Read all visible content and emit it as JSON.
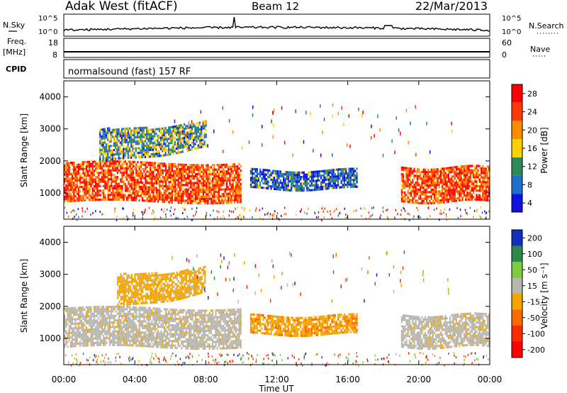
{
  "header": {
    "station": "Adak West (fitACF)",
    "beam": "Beam 12",
    "date": "22/Mar/2013"
  },
  "strips": {
    "nsky": {
      "label": "N.Sky",
      "tick_top": "10^5",
      "tick_bottom": "10^0",
      "right_label": "N.Search",
      "right_tick_top": "10^5",
      "right_tick_bottom": "10^0"
    },
    "freq": {
      "label_top": "Freq.",
      "label_unit": "[MHz]",
      "tick_top": "18",
      "tick_bottom": "8",
      "right_label": "Nave",
      "right_tick_top": "60",
      "right_tick_bottom": "0"
    },
    "cpid": {
      "label": "CPID",
      "value": "normalsound (fast) 157 RF"
    }
  },
  "panels": {
    "power": {
      "ylabel": "Slant Range [km]",
      "cb_label": "Power [dB]",
      "cb_ticks": [
        "28",
        "24",
        "20",
        "16",
        "12",
        "8",
        "4"
      ],
      "cb_colors": [
        "#ff0000",
        "#ff3a00",
        "#ff8c00",
        "#ffd000",
        "#2e8b57",
        "#1f6fcf",
        "#1010e0"
      ]
    },
    "velocity": {
      "ylabel": "Slant Range [km]",
      "cb_label": "Velocity [m s⁻¹]",
      "cb_ticks": [
        "200",
        "100",
        "50",
        "15",
        "-15",
        "-50",
        "-100",
        "-200"
      ],
      "cb_colors": [
        "#1030c0",
        "#2a8a4a",
        "#7ccd3c",
        "#b8b8b0",
        "#f5a500",
        "#ff6a00",
        "#ff2a00",
        "#ff0000"
      ]
    }
  },
  "xaxis": {
    "label": "Time UT",
    "ticks": [
      "00:00",
      "04:00",
      "08:00",
      "12:00",
      "16:00",
      "20:00",
      "00:00"
    ]
  },
  "chart_data": [
    {
      "type": "heatmap",
      "name": "Power",
      "ylabel": "Slant Range [km]",
      "xlabel": "Time UT",
      "y_ticks": [
        1000,
        2000,
        3000,
        4000
      ],
      "ylim": [
        180,
        4500
      ],
      "x_ticks": [
        "00:00",
        "04:00",
        "08:00",
        "12:00",
        "16:00",
        "20:00",
        "00:00"
      ],
      "xlim_hours": [
        0,
        24
      ],
      "colorbar": {
        "label": "Power [dB]",
        "ticks": [
          28,
          24,
          20,
          16,
          12,
          8,
          4
        ]
      },
      "echo_bands": [
        {
          "t_start": 0.0,
          "t_end": 10.0,
          "range_start_km": 700,
          "range_end_km": 1900,
          "dominant_power_db": 24
        },
        {
          "t_start": 2.0,
          "t_end": 8.0,
          "range_start_km": 1900,
          "range_end_km": 2900,
          "dominant_power_db": 12
        },
        {
          "t_start": 10.5,
          "t_end": 16.5,
          "range_start_km": 1100,
          "range_end_km": 1700,
          "dominant_power_db": 8
        },
        {
          "t_start": 19.0,
          "t_end": 24.0,
          "range_start_km": 700,
          "range_end_km": 1800,
          "dominant_power_db": 24
        }
      ]
    },
    {
      "type": "heatmap",
      "name": "Velocity",
      "ylabel": "Slant Range [km]",
      "xlabel": "Time UT",
      "y_ticks": [
        1000,
        2000,
        3000,
        4000
      ],
      "ylim": [
        180,
        4500
      ],
      "x_ticks": [
        "00:00",
        "04:00",
        "08:00",
        "12:00",
        "16:00",
        "20:00",
        "00:00"
      ],
      "xlim_hours": [
        0,
        24
      ],
      "colorbar": {
        "label": "Velocity [m s⁻¹]",
        "ticks": [
          200,
          100,
          50,
          15,
          -15,
          -50,
          -100,
          -200
        ]
      },
      "echo_bands": [
        {
          "t_start": 0.0,
          "t_end": 10.0,
          "range_start_km": 700,
          "range_end_km": 1900,
          "dominant_velocity": 0
        },
        {
          "t_start": 3.0,
          "t_end": 8.0,
          "range_start_km": 1900,
          "range_end_km": 2900,
          "dominant_velocity": -30
        },
        {
          "t_start": 10.5,
          "t_end": 16.5,
          "range_start_km": 1100,
          "range_end_km": 1700,
          "dominant_velocity": -40
        },
        {
          "t_start": 19.0,
          "t_end": 24.0,
          "range_start_km": 700,
          "range_end_km": 1700,
          "dominant_velocity": 0
        }
      ]
    }
  ]
}
